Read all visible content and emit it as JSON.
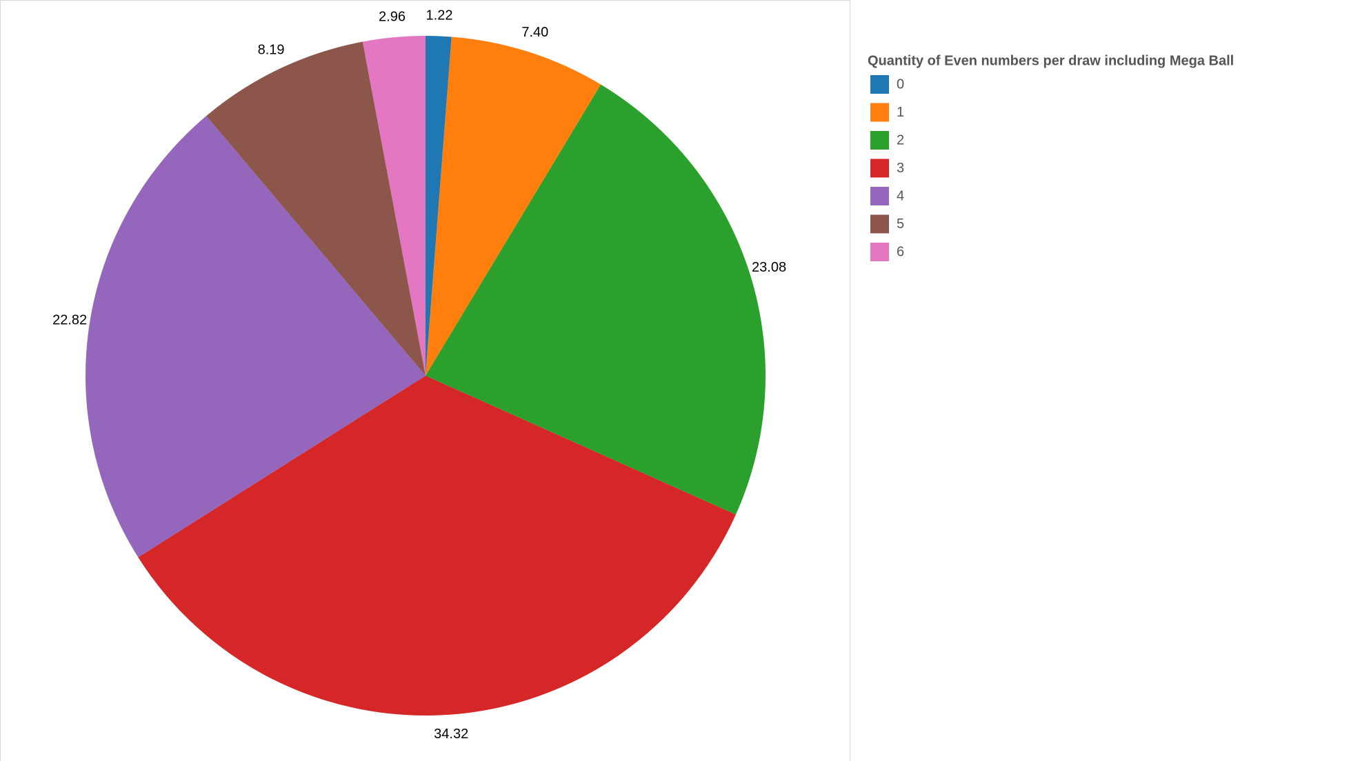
{
  "chart_data": {
    "type": "pie",
    "legend_title": "Quantity of Even numbers per draw including Mega Ball",
    "categories": [
      "0",
      "1",
      "2",
      "3",
      "4",
      "5",
      "6"
    ],
    "values": [
      1.22,
      7.4,
      23.08,
      34.32,
      22.82,
      8.19,
      2.96
    ],
    "value_labels": [
      "1.22",
      "7.40",
      "23.08",
      "34.32",
      "22.82",
      "8.19",
      "2.96"
    ],
    "colors": [
      "#1f77b4",
      "#ff7f0e",
      "#2ca02c",
      "#d62728",
      "#9467bd",
      "#8c564b",
      "#e377c2"
    ],
    "legend": "top-right"
  }
}
